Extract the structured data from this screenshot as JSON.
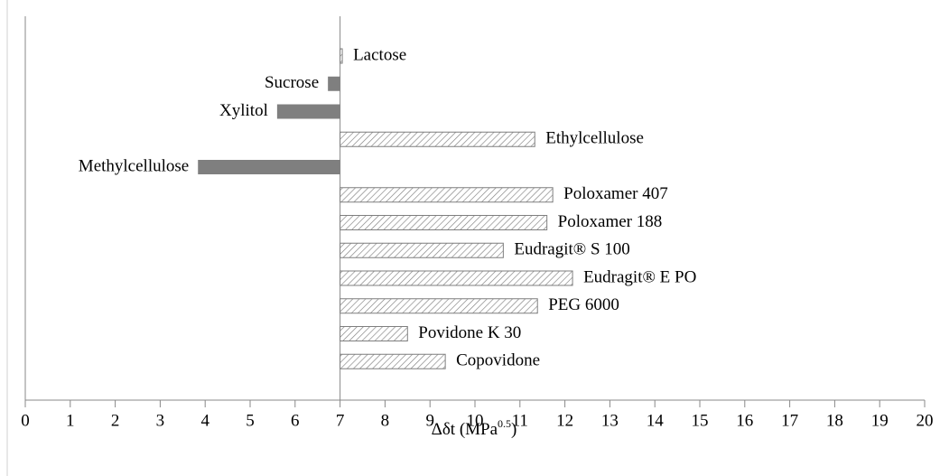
{
  "chart_data": {
    "type": "hbar",
    "categories": [
      "Lactose",
      "Sucrose",
      "Xylitol",
      "Ethylcellulose",
      "Methylcellulose",
      "Poloxamer 407",
      "Poloxamer 188",
      "Eudragit® S 100",
      "Eudragit® E PO",
      "PEG 6000",
      "Povidone K 30",
      "Copovidone"
    ],
    "values": [
      7.05,
      6.73,
      5.6,
      11.33,
      3.84,
      11.73,
      11.6,
      10.63,
      12.17,
      11.39,
      8.5,
      9.34
    ],
    "baseline": 7,
    "color": "#7f7f7f",
    "xlabel": {
      "text": "Δδt (MPa",
      "sup": "0.5",
      "close": ")"
    },
    "xlim": [
      0,
      20
    ],
    "xticks": [
      0,
      1,
      2,
      3,
      4,
      5,
      6,
      7,
      8,
      9,
      10,
      11,
      12,
      13,
      14,
      15,
      16,
      17,
      18,
      19,
      20
    ]
  }
}
